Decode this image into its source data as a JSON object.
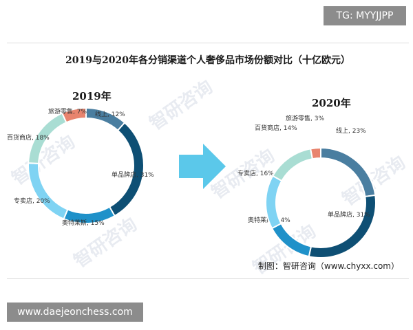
{
  "tg_badge": "TG: MYYJJPP",
  "url_badge": "www.daejeonchess.com",
  "watermark": "智研咨询",
  "source": "制图：智研咨询（www.chyxx.com）",
  "colors": {
    "线上": "#4a7ea0",
    "单品牌店": "#0e4f74",
    "奥特莱斯": "#1f91c9",
    "专卖店": "#7fd3f3",
    "百货商店": "#a9ddd3",
    "旅游零售": "#e8846e",
    "arrow": "#5bc8ea"
  },
  "chart_data": {
    "title": "2019与2020年各分销渠道个人奢侈品市场份额对比（十亿欧元）",
    "charts": [
      {
        "type": "pie",
        "donut": true,
        "year": "2019年",
        "slices": [
          {
            "name": "线上",
            "value": 12,
            "label": "线上, 12%"
          },
          {
            "name": "单品牌店",
            "value": 31,
            "label": "单品牌店, 31%"
          },
          {
            "name": "奥特莱斯",
            "value": 15,
            "label": "奥特莱斯, 15%"
          },
          {
            "name": "专卖店",
            "value": 20,
            "label": "专卖店, 20%"
          },
          {
            "name": "百货商店",
            "value": 18,
            "label": "百货商店, 18%"
          },
          {
            "name": "旅游零售",
            "value": 7,
            "label": "旅游零售, 7%"
          }
        ]
      },
      {
        "type": "pie",
        "donut": true,
        "year": "2020年",
        "slices": [
          {
            "name": "线上",
            "value": 23,
            "label": "线上, 23%"
          },
          {
            "name": "单品牌店",
            "value": 31,
            "label": "单品牌店, 31%"
          },
          {
            "name": "奥特莱斯",
            "value": 14,
            "label": "奥特莱斯, 14%"
          },
          {
            "name": "专卖店",
            "value": 16,
            "label": "专卖店, 16%"
          },
          {
            "name": "百货商店",
            "value": 14,
            "label": "百货商店, 14%"
          },
          {
            "name": "旅游零售",
            "value": 3,
            "label": "旅游零售, 3%"
          }
        ]
      }
    ]
  }
}
